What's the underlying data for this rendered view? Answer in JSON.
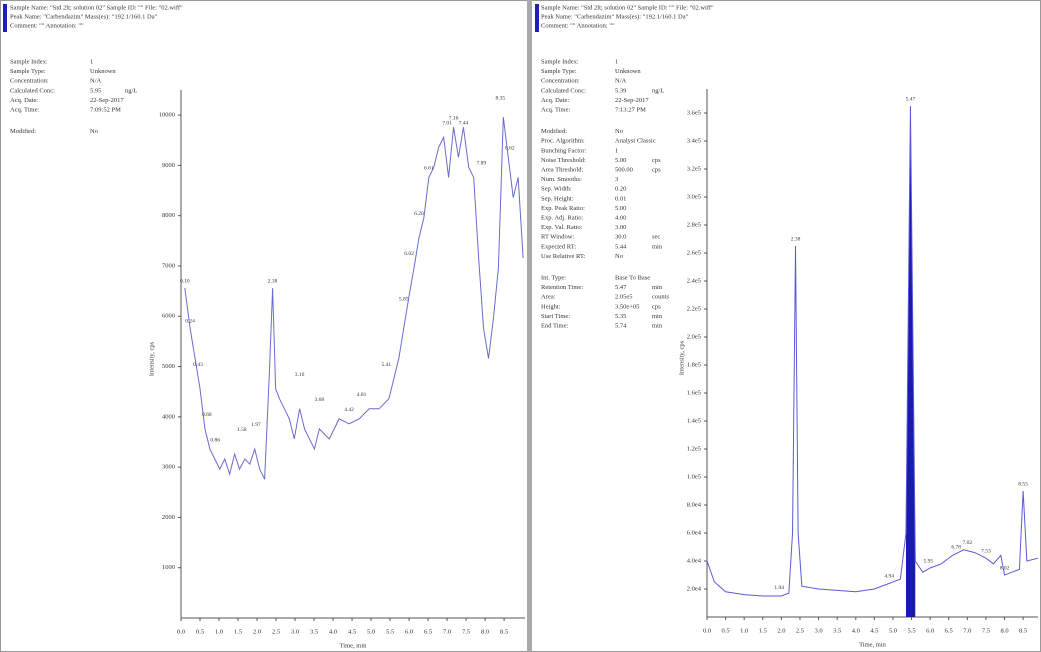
{
  "chart_data": [
    {
      "type": "line",
      "header": [
        "Sample Name: \"Std 2lt; solution 02\"  Sample ID: \"\"  File: \"02.wiff\"",
        "Peak Name: \"Carbendazim\"  Mass(es): \"192.1/160.1 Da\"",
        "Comment: \"\"  Annotation: \"\""
      ],
      "info": [
        [
          {
            "label": "Sample Index:",
            "value": "1"
          },
          {
            "label": "Sample Type:",
            "value": "Unknown"
          },
          {
            "label": "Concentration:",
            "value": "N/A"
          },
          {
            "label": "Calculated Conc:",
            "value": "5.95",
            "unit": "ng/L"
          },
          {
            "label": "Acq. Date:",
            "value": "22-Sep-2017"
          },
          {
            "label": "Acq. Time:",
            "value": "7:09:52 PM"
          }
        ],
        [
          {
            "label": "Modified:",
            "value": "No"
          }
        ]
      ],
      "x_label": "Time, min",
      "y_label": "Intensity, cps",
      "color": "#6a6ad0",
      "xlim": [
        0,
        9.05
      ],
      "ylim": [
        0,
        10300
      ],
      "xticks": [
        {
          "value": 0,
          "label": "0.0"
        },
        0.5,
        {
          "value": 1,
          "label": "1.0"
        },
        1.5,
        {
          "value": 2,
          "label": "2.0"
        },
        2.5,
        {
          "value": 3,
          "label": "3.0"
        },
        3.5,
        {
          "value": 4,
          "label": "4.0"
        },
        4.5,
        {
          "value": 5,
          "label": "5.0"
        },
        5.5,
        {
          "value": 6,
          "label": "6.0"
        },
        6.5,
        {
          "value": 7,
          "label": "7.0"
        },
        7.5,
        {
          "value": 8,
          "label": "8.0"
        },
        8.5
      ],
      "yticks": [
        1000,
        2000,
        3000,
        4000,
        5000,
        6000,
        7000,
        8000,
        9000,
        10000
      ],
      "x": [
        0.1,
        0.24,
        0.37,
        0.5,
        0.63,
        0.76,
        0.89,
        1.02,
        1.15,
        1.28,
        1.41,
        1.54,
        1.68,
        1.81,
        1.94,
        2.07,
        2.2,
        2.33,
        2.41,
        2.49,
        2.59,
        2.72,
        2.85,
        2.98,
        3.12,
        3.25,
        3.38,
        3.51,
        3.64,
        3.9,
        4.16,
        4.42,
        4.69,
        4.95,
        5.21,
        5.47,
        5.73,
        5.86,
        5.99,
        6.13,
        6.26,
        6.39,
        6.52,
        6.65,
        6.78,
        6.91,
        7.04,
        7.17,
        7.3,
        7.43,
        7.57,
        7.7,
        7.83,
        7.96,
        8.09,
        8.22,
        8.35,
        8.48,
        8.61,
        8.74,
        8.87,
        9.0
      ],
      "values": [
        6560,
        5760,
        5160,
        4560,
        3760,
        3360,
        3160,
        2960,
        3160,
        2860,
        3260,
        2960,
        3160,
        3060,
        3360,
        2960,
        2760,
        4960,
        6560,
        4560,
        4360,
        4160,
        3960,
        3560,
        4160,
        3760,
        3560,
        3360,
        3760,
        3560,
        3960,
        3860,
        3960,
        4160,
        4160,
        4360,
        5160,
        5760,
        6360,
        6960,
        7560,
        7960,
        8760,
        8960,
        9360,
        9560,
        8760,
        9760,
        9160,
        9760,
        8960,
        8760,
        7160,
        5760,
        5160,
        5960,
        6960,
        9960,
        9160,
        8360,
        8760,
        7160
      ],
      "annotations": [
        {
          "text": "0.10",
          "x": 0.1,
          "y": 6560
        },
        {
          "text": "0.24",
          "x": 0.24,
          "y": 5760
        },
        {
          "text": "0.43",
          "x": 0.45,
          "y": 4900
        },
        {
          "text": "0.68",
          "x": 0.68,
          "y": 3900
        },
        {
          "text": "0.86",
          "x": 0.9,
          "y": 3400
        },
        {
          "text": "1.58",
          "x": 1.6,
          "y": 3600
        },
        {
          "text": "1.97",
          "x": 1.97,
          "y": 3700
        },
        {
          "text": "2.38",
          "x": 2.41,
          "y": 6560
        },
        {
          "text": "3.10",
          "x": 3.12,
          "y": 4700
        },
        {
          "text": "3.68",
          "x": 3.64,
          "y": 4200
        },
        {
          "text": "4.42",
          "x": 4.42,
          "y": 4000
        },
        {
          "text": "4.81",
          "x": 4.75,
          "y": 4300
        },
        {
          "text": "5.41",
          "x": 5.4,
          "y": 4900
        },
        {
          "text": "5.85",
          "x": 5.86,
          "y": 6200
        },
        {
          "text": "6.02",
          "x": 6.0,
          "y": 7100
        },
        {
          "text": "6.20",
          "x": 6.26,
          "y": 7900
        },
        {
          "text": "6.61",
          "x": 6.52,
          "y": 8800
        },
        {
          "text": "7.01",
          "x": 7.0,
          "y": 9700
        },
        {
          "text": "7.16",
          "x": 7.17,
          "y": 9800
        },
        {
          "text": "7.44",
          "x": 7.43,
          "y": 9700
        },
        {
          "text": "7.89",
          "x": 7.9,
          "y": 8900
        },
        {
          "text": "8.35",
          "x": 8.4,
          "y": 10200
        },
        {
          "text": "8.62",
          "x": 8.65,
          "y": 9200
        }
      ]
    },
    {
      "type": "line",
      "header": [
        "Sample Name: \"Std 2lt; solution 02\"  Sample ID: \"\"  File: \"02.wiff\"",
        "Peak Name: \"Carbendazim\"  Mass(es): \"192.1/160.1 Da\"",
        "Comment: \"\"  Annotation: \"\""
      ],
      "info": [
        [
          {
            "label": "Sample Index:",
            "value": "1"
          },
          {
            "label": "Sample Type:",
            "value": "Unknown"
          },
          {
            "label": "Concentration:",
            "value": "N/A"
          },
          {
            "label": "Calculated Conc:",
            "value": "5.39",
            "unit": "ng/L"
          },
          {
            "label": "Acq. Date:",
            "value": "22-Sep-2017"
          },
          {
            "label": "Acq. Time:",
            "value": "7:13:27 PM"
          }
        ],
        [
          {
            "label": "Modified:",
            "value": "No"
          },
          {
            "label": "Proc. Algorithm:",
            "value": "Analyst Classic"
          },
          {
            "label": "Bunching Factor:",
            "value": "1"
          },
          {
            "label": "Noise Threshold:",
            "value": "5.00",
            "unit": "cps"
          },
          {
            "label": "Area Threshold:",
            "value": "500.00",
            "unit": "cps"
          },
          {
            "label": "Num. Smooths:",
            "value": "3"
          },
          {
            "label": "Sep. Width:",
            "value": "0.20"
          },
          {
            "label": "Sep. Height:",
            "value": "0.01"
          },
          {
            "label": "Exp. Peak Ratio:",
            "value": "5.00"
          },
          {
            "label": "Exp. Adj. Ratio:",
            "value": "4.00"
          },
          {
            "label": "Exp. Val. Ratio:",
            "value": "3.00"
          },
          {
            "label": "RT Window:",
            "value": "30.0",
            "unit": "sec"
          },
          {
            "label": "Expected RT:",
            "value": "5.44",
            "unit": "min"
          },
          {
            "label": "Use Relative RT:",
            "value": "No"
          }
        ],
        [
          {
            "label": "Int. Type:",
            "value": "Base To Base"
          },
          {
            "label": "Retention Time:",
            "value": "5.47",
            "unit": "min"
          },
          {
            "label": "Area:",
            "value": "2.05e5",
            "unit": "counts"
          },
          {
            "label": "Height:",
            "value": "3.50e+05",
            "unit": "cps"
          },
          {
            "label": "Start Time:",
            "value": "5.35",
            "unit": "min"
          },
          {
            "label": "End Time:",
            "value": "5.74",
            "unit": "min"
          }
        ]
      ],
      "x_label": "Time, min",
      "y_label": "Intensity, cps",
      "color": "#5a5ad8",
      "fill_color": "#1a1ab0",
      "xlim": [
        0,
        8.9
      ],
      "ylim": [
        0,
        370000
      ],
      "xticks": [
        {
          "value": 0,
          "label": "0.0"
        },
        0.5,
        {
          "value": 1,
          "label": "1.0"
        },
        1.5,
        {
          "value": 2,
          "label": "2.0"
        },
        2.5,
        {
          "value": 3,
          "label": "3.0"
        },
        3.5,
        {
          "value": 4,
          "label": "4.0"
        },
        4.5,
        {
          "value": 5,
          "label": "5.0"
        },
        5.5,
        {
          "value": 6,
          "label": "6.0"
        },
        6.5,
        {
          "value": 7,
          "label": "7.0"
        },
        7.5,
        {
          "value": 8,
          "label": "8.0"
        },
        8.5
      ],
      "yticks": [
        {
          "value": 20000,
          "label": "2.0e4"
        },
        {
          "value": 40000,
          "label": "4.0e4"
        },
        {
          "value": 60000,
          "label": "6.0e4"
        },
        {
          "value": 80000,
          "label": "8.0e4"
        },
        {
          "value": 100000,
          "label": "1.0e5"
        },
        {
          "value": 120000,
          "label": "1.2e5"
        },
        {
          "value": 140000,
          "label": "1.4e5"
        },
        {
          "value": 160000,
          "label": "1.6e5"
        },
        {
          "value": 180000,
          "label": "1.8e5"
        },
        {
          "value": 200000,
          "label": "2.0e5"
        },
        {
          "value": 220000,
          "label": "2.2e5"
        },
        {
          "value": 240000,
          "label": "2.4e5"
        },
        {
          "value": 260000,
          "label": "2.6e5"
        },
        {
          "value": 280000,
          "label": "2.8e5"
        },
        {
          "value": 300000,
          "label": "3.0e5"
        },
        {
          "value": 320000,
          "label": "3.2e5"
        },
        {
          "value": 340000,
          "label": "3.4e5"
        },
        {
          "value": 360000,
          "label": "3.6e5"
        }
      ],
      "x": [
        0.0,
        0.2,
        0.5,
        1.0,
        1.5,
        2.0,
        2.2,
        2.3,
        2.38,
        2.45,
        2.55,
        3.0,
        3.5,
        4.0,
        4.5,
        4.9,
        5.2,
        5.35,
        5.47,
        5.6,
        5.8,
        6.0,
        6.3,
        6.6,
        6.9,
        7.2,
        7.5,
        7.7,
        7.9,
        8.0,
        8.2,
        8.4,
        8.5,
        8.6,
        8.9
      ],
      "values": [
        40000,
        25000,
        18000,
        16000,
        15000,
        15000,
        17000,
        60000,
        265000,
        60000,
        22000,
        20000,
        19000,
        18000,
        20000,
        24000,
        27000,
        60000,
        365000,
        40000,
        32000,
        35000,
        38000,
        44000,
        48000,
        46000,
        42000,
        38000,
        44000,
        30000,
        32000,
        34000,
        90000,
        40000,
        42000
      ],
      "annotations": [
        {
          "text": "1.94",
          "x": 1.94,
          "y": 16000
        },
        {
          "text": "2.38",
          "x": 2.38,
          "y": 265000
        },
        {
          "text": "4.94",
          "x": 4.9,
          "y": 24000
        },
        {
          "text": "5.47",
          "x": 5.47,
          "y": 365000
        },
        {
          "text": "5.95",
          "x": 5.95,
          "y": 35000
        },
        {
          "text": "6.78",
          "x": 6.7,
          "y": 45000
        },
        {
          "text": "7.02",
          "x": 7.0,
          "y": 48000
        },
        {
          "text": "7.53",
          "x": 7.5,
          "y": 42000
        },
        {
          "text": "8.02",
          "x": 8.0,
          "y": 30000
        },
        {
          "text": "8.55",
          "x": 8.5,
          "y": 90000
        }
      ]
    }
  ]
}
